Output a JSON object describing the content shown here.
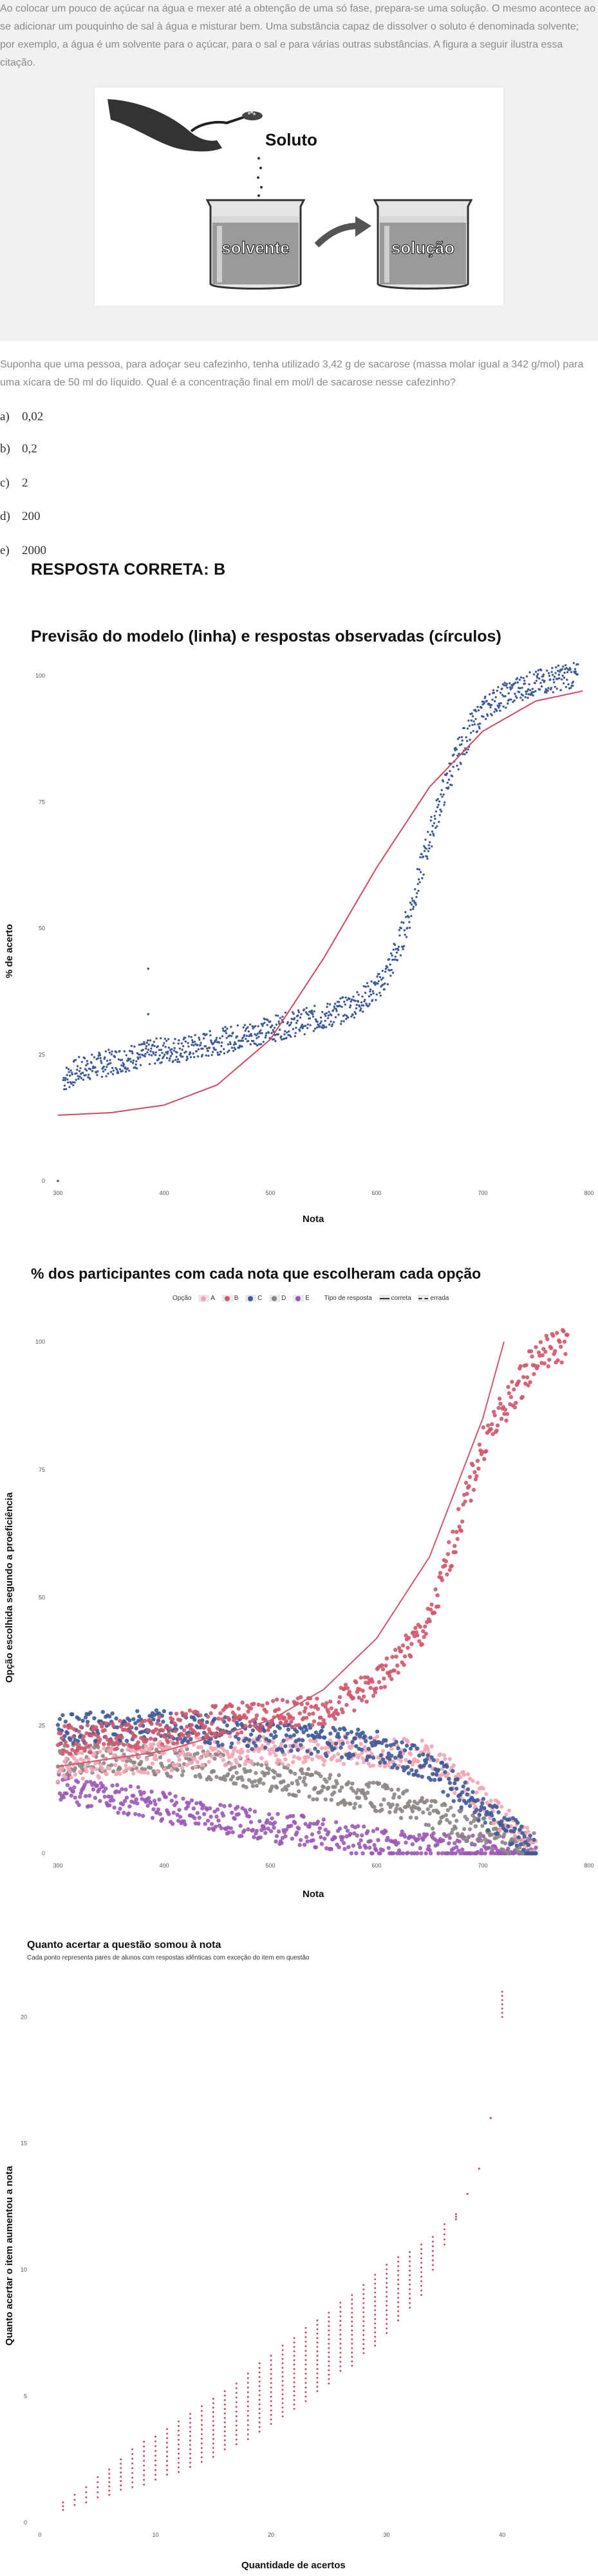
{
  "content": {
    "intro": "Ao colocar um pouco de açúcar na água e mexer até a obtenção de uma só fase, prepara-se uma solução. O mesmo acontece ao se adicionar um pouquinho de sal à água e misturar bem. Uma substância capaz de dissolver o soluto é denominada solvente; por exemplo, a água é um solvente para o açúcar, para o sal e para várias outras substâncias. A figura a seguir ilustra essa citação.",
    "figure_labels": {
      "soluto": "Soluto",
      "solvente": "solvente",
      "solucao": "solução"
    },
    "question": "Suponha que uma pessoa, para adoçar seu cafezinho, tenha utilizado 3,42 g de sacarose (massa molar igual a 342 g/mol) para uma xícara de 50 ml do líquido. Qual é a concentração final em mol/l de sacarose nesse cafezinho?",
    "options": [
      {
        "letter": "a)",
        "text": "0,02"
      },
      {
        "letter": "b)",
        "text": "0,2"
      },
      {
        "letter": "c)",
        "text": "2"
      },
      {
        "letter": "d)",
        "text": "200"
      },
      {
        "letter": "e)",
        "text": "2000"
      }
    ],
    "answer": "RESPOSTA CORRETA: B"
  },
  "colors": {
    "observed": "#3f5a98",
    "model": "#d3475e",
    "A": "#f4a4b4",
    "B": "#d2566c",
    "C": "#3f5a98",
    "D": "#8c8584",
    "E": "#9b59b6",
    "gain": "#cf4a62"
  },
  "chart_data": [
    {
      "type": "scatter",
      "title": "Previsão do modelo (linha) e respostas observadas (círculos)",
      "xlabel": "Nota",
      "ylabel": "% de acerto",
      "x_ticks": [
        "300",
        "400",
        "500",
        "600",
        "700",
        "800"
      ],
      "y_ticks": [
        "0",
        "25",
        "50",
        "75",
        "100"
      ],
      "xlim": [
        300,
        800
      ],
      "ylim": [
        0,
        100
      ],
      "grid": false,
      "series": [
        {
          "kind": "points",
          "x": [
            300,
            305,
            320,
            340,
            360,
            380,
            400,
            420,
            440,
            460,
            480,
            500,
            520,
            540,
            560,
            580,
            600,
            610,
            620,
            630,
            640,
            650,
            660,
            670,
            680,
            690,
            700,
            710,
            720,
            740,
            760,
            780
          ],
          "y": [
            0,
            20,
            22,
            23,
            24,
            25,
            26,
            26,
            27,
            28,
            29,
            30,
            31,
            32,
            33,
            35,
            38,
            41,
            46,
            52,
            60,
            68,
            75,
            81,
            86,
            90,
            93,
            95,
            96,
            98,
            99,
            100
          ]
        },
        {
          "kind": "line",
          "x": [
            300,
            350,
            400,
            450,
            500,
            550,
            600,
            650,
            700,
            750,
            795
          ],
          "y": [
            13,
            13.5,
            15,
            19,
            28,
            44,
            62,
            78,
            89,
            95,
            97
          ]
        }
      ]
    },
    {
      "type": "scatter",
      "title": "% dos participantes com cada nota que escolheram cada opção",
      "xlabel": "Nota",
      "ylabel": "Opção escolhida segundo a proeficiência",
      "legend": {
        "option_title": "Opção",
        "options": [
          "A",
          "B",
          "C",
          "D",
          "E"
        ],
        "type_title": "Tipo de resposta",
        "types": [
          "correta",
          "errada"
        ]
      },
      "legend_position": "top",
      "x_ticks": [
        "300",
        "400",
        "500",
        "600",
        "700",
        "800"
      ],
      "y_ticks": [
        "0",
        "25",
        "50",
        "75",
        "100"
      ],
      "xlim": [
        300,
        800
      ],
      "ylim": [
        0,
        100
      ],
      "series": [
        {
          "name": "A",
          "x": [
            300,
            350,
            400,
            450,
            500,
            550,
            600,
            650,
            700,
            750
          ],
          "y": [
            17,
            18,
            19,
            20,
            20,
            20,
            20,
            19,
            10,
            1
          ]
        },
        {
          "name": "B",
          "x": [
            300,
            350,
            400,
            450,
            500,
            550,
            600,
            650,
            700,
            750,
            780
          ],
          "y": [
            22,
            23,
            24,
            26,
            27,
            28,
            33,
            45,
            80,
            97,
            100
          ]
        },
        {
          "name": "C",
          "x": [
            300,
            350,
            400,
            450,
            500,
            550,
            600,
            650,
            700,
            750
          ],
          "y": [
            24,
            25,
            25,
            24,
            23,
            22,
            21,
            17,
            8,
            1
          ]
        },
        {
          "name": "D",
          "x": [
            300,
            350,
            400,
            450,
            500,
            550,
            600,
            650,
            700,
            750
          ],
          "y": [
            18,
            19,
            18,
            17,
            15,
            13,
            11,
            8,
            4,
            1
          ]
        },
        {
          "name": "E",
          "x": [
            300,
            350,
            400,
            450,
            500,
            550,
            600,
            650,
            700,
            750
          ],
          "y": [
            13,
            11,
            9,
            7,
            5,
            4,
            2,
            1,
            0.5,
            0
          ]
        },
        {
          "name": "B-model",
          "kind": "line",
          "x": [
            300,
            400,
            500,
            550,
            600,
            650,
            700,
            720
          ],
          "y": [
            17,
            20,
            26,
            32,
            42,
            58,
            85,
            100
          ]
        }
      ]
    },
    {
      "type": "scatter",
      "title": "Quanto acertar a questão somou à nota",
      "subtitle": "Cada ponto representa pares de alunos com respostas idênticas com exceção do item em questão",
      "xlabel": "Quantidade de acertos",
      "ylabel": "Quanto acertar o item aumentou a nota",
      "x_ticks": [
        "0",
        "10",
        "20",
        "30",
        "40"
      ],
      "y_ticks": [
        "0",
        "5",
        "10",
        "15",
        "20"
      ],
      "xlim": [
        0,
        45
      ],
      "ylim": [
        0,
        21
      ],
      "points": {
        "x": [
          2,
          3,
          4,
          5,
          6,
          7,
          8,
          9,
          10,
          11,
          12,
          13,
          14,
          15,
          16,
          17,
          18,
          19,
          20,
          21,
          22,
          23,
          24,
          25,
          26,
          27,
          28,
          29,
          30,
          31,
          32,
          33,
          34,
          35,
          36,
          37,
          38,
          39,
          40
        ],
        "y_min": [
          0.5,
          0.7,
          0.8,
          1.0,
          1.1,
          1.3,
          1.4,
          1.5,
          1.7,
          1.9,
          2.0,
          2.2,
          2.4,
          2.6,
          2.9,
          3.1,
          3.3,
          3.6,
          3.9,
          4.2,
          4.5,
          4.8,
          5.2,
          5.5,
          6.0,
          6.2,
          6.7,
          7.0,
          7.5,
          8.0,
          8.5,
          9.0,
          10.0,
          11.0,
          12.0,
          13.0,
          14.0,
          16.0,
          20.0
        ],
        "y_max": [
          0.8,
          1.1,
          1.4,
          1.8,
          2.1,
          2.5,
          2.9,
          3.2,
          3.4,
          3.7,
          4.0,
          4.3,
          4.6,
          4.9,
          5.2,
          5.5,
          5.9,
          6.3,
          6.6,
          7.0,
          7.3,
          7.7,
          8.0,
          8.3,
          8.7,
          9.0,
          9.4,
          9.8,
          10.2,
          10.5,
          10.7,
          11.0,
          11.3,
          11.8,
          12.2,
          13.0,
          14.0,
          16.0,
          21.0
        ]
      }
    }
  ]
}
